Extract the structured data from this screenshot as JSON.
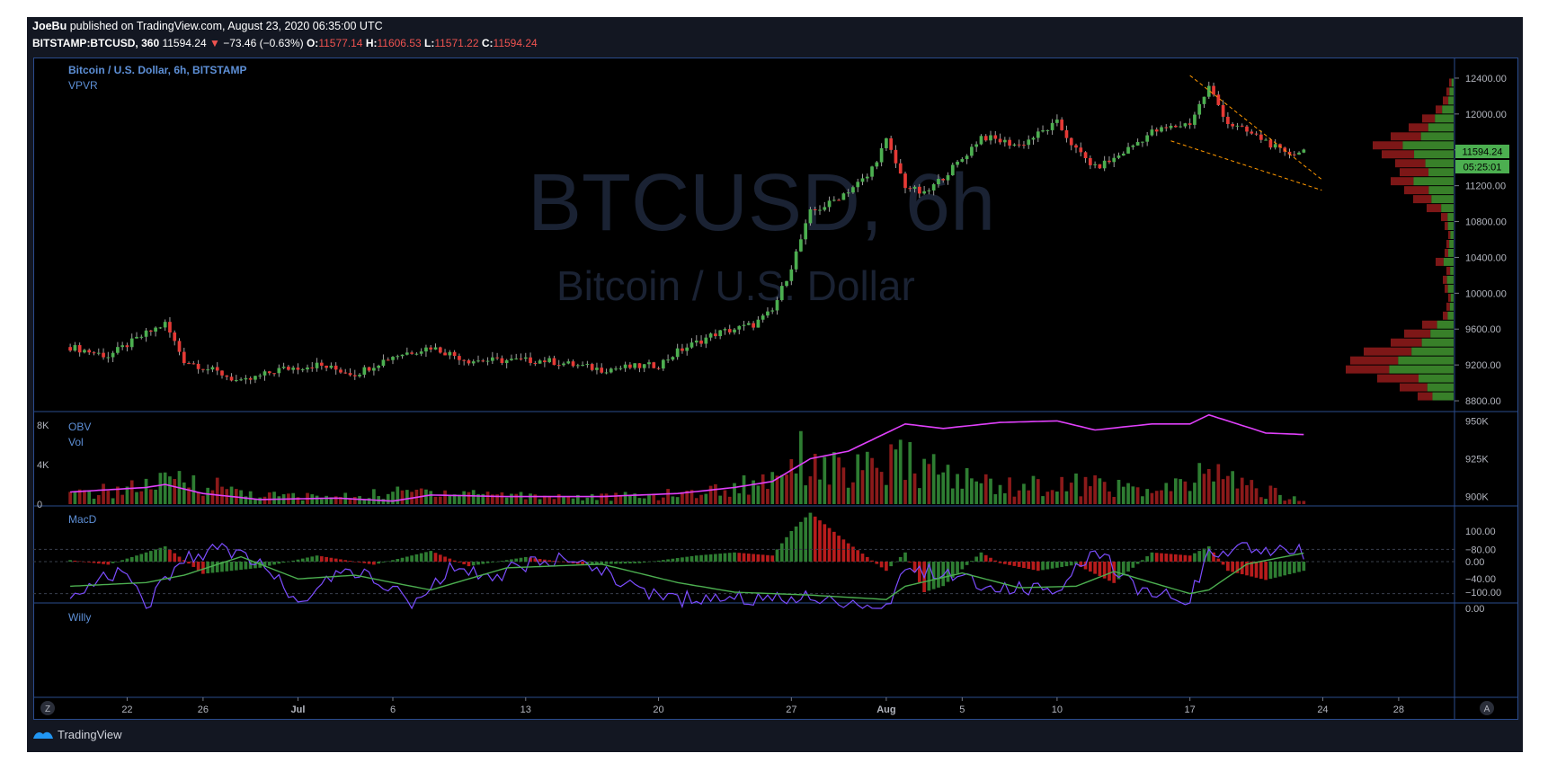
{
  "header": {
    "author": "JoeBu",
    "published_text": "published on TradingView.com, August 23, 2020 06:35:00 UTC",
    "symbol": "BITSTAMP:BTCUSD, 360",
    "price": "11594.24",
    "change": "−73.46 (−0.63%)",
    "o_label": "O:",
    "o_val": "11577.14",
    "h_label": "H:",
    "h_val": "11606.53",
    "l_label": "L:",
    "l_val": "11571.22",
    "c_label": "C:",
    "c_val": "11594.24"
  },
  "panes": {
    "main_title": "Bitcoin / U.S. Dollar, 6h, BITSTAMP",
    "vpvr_label": "VPVR",
    "watermark_symbol": "BTCUSD, 6h",
    "watermark_name": "Bitcoin / U.S. Dollar",
    "obv_label": "OBV",
    "vol_label": "Vol",
    "macd_label": "MacD",
    "willy_label": "Willy",
    "last_price_tag": "11594.24",
    "countdown_tag": "05:25:01",
    "footer_brand": "TradingView",
    "z_button": "Z",
    "a_button": "A"
  },
  "colors": {
    "background": "#131722",
    "up": "#26a69a",
    "down": "#ef5350",
    "candle_up": "#4caf50",
    "candle_down": "#e53935",
    "obv_line": "#e040fb",
    "willy_line": "#7c4dff",
    "willy_signal": "#e53935",
    "axis_text": "#b2b5be",
    "label_blue": "#5d8fd6"
  },
  "chart_data": [
    {
      "type": "candlestick",
      "title": "Bitcoin / U.S. Dollar, 6h, BITSTAMP",
      "y_ticks": [
        8800,
        9200,
        9600,
        10000,
        10400,
        10800,
        11200,
        11600,
        12000,
        12400
      ],
      "y_tick_labels": [
        "8800.00",
        "9200.00",
        "9600.00",
        "10000.00",
        "10400.00",
        "10800.00",
        "11200.00",
        "11600.00",
        "12000.00",
        "12400.00"
      ],
      "ylim": [
        8700,
        12550
      ],
      "x_tick_labels": [
        "22",
        "26",
        "Jul",
        "6",
        "13",
        "20",
        "27",
        "Aug",
        "5",
        "10",
        "17",
        "24",
        "28"
      ],
      "x_tick_dates": [
        "2020-06-22",
        "2020-06-26",
        "2020-07-01",
        "2020-07-06",
        "2020-07-13",
        "2020-07-20",
        "2020-07-27",
        "2020-08-01",
        "2020-08-05",
        "2020-08-10",
        "2020-08-17",
        "2020-08-24",
        "2020-08-28"
      ],
      "x_range": [
        "2020-06-18",
        "2020-08-29"
      ],
      "close_path": [
        [
          "2020-06-19",
          9400
        ],
        [
          "2020-06-21",
          9300
        ],
        [
          "2020-06-23",
          9550
        ],
        [
          "2020-06-24",
          9660
        ],
        [
          "2020-06-25",
          9250
        ],
        [
          "2020-06-27",
          9100
        ],
        [
          "2020-06-28",
          9000
        ],
        [
          "2020-06-30",
          9150
        ],
        [
          "2020-07-02",
          9200
        ],
        [
          "2020-07-04",
          9100
        ],
        [
          "2020-07-06",
          9300
        ],
        [
          "2020-07-08",
          9400
        ],
        [
          "2020-07-10",
          9250
        ],
        [
          "2020-07-12",
          9250
        ],
        [
          "2020-07-14",
          9250
        ],
        [
          "2020-07-17",
          9150
        ],
        [
          "2020-07-20",
          9200
        ],
        [
          "2020-07-21",
          9350
        ],
        [
          "2020-07-23",
          9550
        ],
        [
          "2020-07-25",
          9650
        ],
        [
          "2020-07-26",
          9800
        ],
        [
          "2020-07-27",
          10300
        ],
        [
          "2020-07-28",
          10900
        ],
        [
          "2020-07-29",
          11000
        ],
        [
          "2020-07-31",
          11300
        ],
        [
          "2020-08-01",
          11700
        ],
        [
          "2020-08-02",
          11200
        ],
        [
          "2020-08-03",
          11100
        ],
        [
          "2020-08-05",
          11500
        ],
        [
          "2020-08-06",
          11750
        ],
        [
          "2020-08-08",
          11650
        ],
        [
          "2020-08-10",
          11900
        ],
        [
          "2020-08-11",
          11600
        ],
        [
          "2020-08-12",
          11400
        ],
        [
          "2020-08-13",
          11500
        ],
        [
          "2020-08-15",
          11800
        ],
        [
          "2020-08-17",
          11900
        ],
        [
          "2020-08-18",
          12300
        ],
        [
          "2020-08-19",
          11900
        ],
        [
          "2020-08-21",
          11700
        ],
        [
          "2020-08-22",
          11550
        ],
        [
          "2020-08-23",
          11594
        ]
      ],
      "last_price": 11594.24,
      "wedge_upper": [
        [
          "2020-08-17",
          12430
        ],
        [
          "2020-08-23",
          11450
        ]
      ],
      "wedge_lower": [
        [
          "2020-08-16",
          11700
        ],
        [
          "2020-08-23",
          11250
        ]
      ],
      "vpvr_profile": [
        [
          8850,
          40
        ],
        [
          8950,
          60
        ],
        [
          9050,
          85
        ],
        [
          9150,
          120
        ],
        [
          9250,
          115
        ],
        [
          9350,
          100
        ],
        [
          9450,
          70
        ],
        [
          9550,
          55
        ],
        [
          9650,
          35
        ],
        [
          9750,
          12
        ],
        [
          9850,
          8
        ],
        [
          9950,
          6
        ],
        [
          10050,
          10
        ],
        [
          10150,
          12
        ],
        [
          10250,
          8
        ],
        [
          10350,
          20
        ],
        [
          10450,
          10
        ],
        [
          10550,
          8
        ],
        [
          10650,
          6
        ],
        [
          10750,
          10
        ],
        [
          10850,
          14
        ],
        [
          10950,
          30
        ],
        [
          11050,
          45
        ],
        [
          11150,
          55
        ],
        [
          11250,
          70
        ],
        [
          11350,
          60
        ],
        [
          11450,
          65
        ],
        [
          11550,
          80
        ],
        [
          11650,
          90
        ],
        [
          11750,
          70
        ],
        [
          11850,
          50
        ],
        [
          11950,
          35
        ],
        [
          12050,
          20
        ],
        [
          12150,
          12
        ],
        [
          12250,
          8
        ],
        [
          12350,
          5
        ]
      ]
    },
    {
      "type": "bar",
      "name": "Vol / OBV",
      "left_ticks": [
        "8K",
        "4K",
        "0"
      ],
      "left_tick_values": [
        8000,
        4000,
        0
      ],
      "right_ticks": [
        "950K",
        "925K",
        "900K"
      ],
      "right_tick_values": [
        950000,
        925000,
        900000
      ],
      "vol_path": [
        [
          "2020-06-19",
          900
        ],
        [
          "2020-06-23",
          1800
        ],
        [
          "2020-06-25",
          2500
        ],
        [
          "2020-06-29",
          900
        ],
        [
          "2020-07-03",
          700
        ],
        [
          "2020-07-08",
          1400
        ],
        [
          "2020-07-13",
          900
        ],
        [
          "2020-07-17",
          700
        ],
        [
          "2020-07-21",
          1000
        ],
        [
          "2020-07-24",
          1600
        ],
        [
          "2020-07-26",
          2800
        ],
        [
          "2020-07-27",
          5200
        ],
        [
          "2020-07-28",
          4500
        ],
        [
          "2020-07-30",
          3000
        ],
        [
          "2020-08-02",
          4200
        ],
        [
          "2020-08-05",
          2500
        ],
        [
          "2020-08-08",
          1800
        ],
        [
          "2020-08-12",
          2000
        ],
        [
          "2020-08-15",
          1200
        ],
        [
          "2020-08-17",
          2000
        ],
        [
          "2020-08-18",
          3500
        ],
        [
          "2020-08-20",
          1800
        ],
        [
          "2020-08-23",
          300
        ]
      ],
      "obv_path": [
        [
          "2020-06-19",
          903000
        ],
        [
          "2020-06-23",
          906000
        ],
        [
          "2020-06-24",
          908000
        ],
        [
          "2020-06-26",
          902000
        ],
        [
          "2020-06-29",
          898000
        ],
        [
          "2020-07-03",
          899000
        ],
        [
          "2020-07-06",
          897000
        ],
        [
          "2020-07-08",
          901000
        ],
        [
          "2020-07-12",
          900000
        ],
        [
          "2020-07-17",
          900000
        ],
        [
          "2020-07-21",
          902000
        ],
        [
          "2020-07-24",
          906000
        ],
        [
          "2020-07-26",
          910000
        ],
        [
          "2020-07-28",
          925000
        ],
        [
          "2020-07-30",
          930000
        ],
        [
          "2020-08-02",
          948000
        ],
        [
          "2020-08-04",
          945000
        ],
        [
          "2020-08-07",
          949000
        ],
        [
          "2020-08-10",
          950000
        ],
        [
          "2020-08-12",
          944000
        ],
        [
          "2020-08-15",
          948000
        ],
        [
          "2020-08-17",
          948000
        ],
        [
          "2020-08-18",
          954000
        ],
        [
          "2020-08-21",
          942000
        ],
        [
          "2020-08-23",
          941000
        ]
      ]
    },
    {
      "type": "bar",
      "name": "MacD",
      "y_ticks": [
        100,
        0,
        -100
      ],
      "y_tick_labels": [
        "100.00",
        "0.00",
        "−100.00"
      ],
      "hist_path": [
        [
          "2020-06-19",
          5
        ],
        [
          "2020-06-21",
          -10
        ],
        [
          "2020-06-23",
          30
        ],
        [
          "2020-06-24",
          50
        ],
        [
          "2020-06-26",
          -40
        ],
        [
          "2020-06-29",
          -20
        ],
        [
          "2020-07-02",
          20
        ],
        [
          "2020-07-05",
          -10
        ],
        [
          "2020-07-08",
          35
        ],
        [
          "2020-07-10",
          -15
        ],
        [
          "2020-07-13",
          15
        ],
        [
          "2020-07-16",
          -10
        ],
        [
          "2020-07-19",
          -5
        ],
        [
          "2020-07-22",
          20
        ],
        [
          "2020-07-24",
          30
        ],
        [
          "2020-07-26",
          20
        ],
        [
          "2020-07-27",
          100
        ],
        [
          "2020-07-28",
          160
        ],
        [
          "2020-07-30",
          60
        ],
        [
          "2020-08-01",
          -30
        ],
        [
          "2020-08-02",
          30
        ],
        [
          "2020-08-03",
          -100
        ],
        [
          "2020-08-04",
          -80
        ],
        [
          "2020-08-06",
          30
        ],
        [
          "2020-08-07",
          -5
        ],
        [
          "2020-08-09",
          -30
        ],
        [
          "2020-08-11",
          -10
        ],
        [
          "2020-08-13",
          -70
        ],
        [
          "2020-08-15",
          30
        ],
        [
          "2020-08-17",
          20
        ],
        [
          "2020-08-18",
          50
        ],
        [
          "2020-08-19",
          -30
        ],
        [
          "2020-08-21",
          -60
        ],
        [
          "2020-08-23",
          -30
        ]
      ]
    },
    {
      "type": "line",
      "name": "Willy",
      "y_ticks": [
        0,
        -40,
        -80
      ],
      "y_tick_labels": [
        "0.00",
        "−40.00",
        "−80.00"
      ],
      "willy_path": [
        [
          "2020-06-19",
          -20
        ],
        [
          "2020-06-20",
          -35
        ],
        [
          "2020-06-22",
          -50
        ],
        [
          "2020-06-23",
          -5
        ],
        [
          "2020-06-25",
          -65
        ],
        [
          "2020-06-27",
          -80
        ],
        [
          "2020-06-29",
          -60
        ],
        [
          "2020-07-01",
          -10
        ],
        [
          "2020-07-03",
          -50
        ],
        [
          "2020-07-05",
          -45
        ],
        [
          "2020-07-07",
          -10
        ],
        [
          "2020-07-09",
          -55
        ],
        [
          "2020-07-11",
          -40
        ],
        [
          "2020-07-14",
          -70
        ],
        [
          "2020-07-17",
          -50
        ],
        [
          "2020-07-19",
          -20
        ],
        [
          "2020-07-21",
          -10
        ],
        [
          "2020-07-23",
          -20
        ],
        [
          "2020-07-25",
          -15
        ],
        [
          "2020-07-28",
          -15
        ],
        [
          "2020-07-31",
          -5
        ],
        [
          "2020-08-01",
          0
        ],
        [
          "2020-08-02",
          -60
        ],
        [
          "2020-08-04",
          -45
        ],
        [
          "2020-08-07",
          -30
        ],
        [
          "2020-08-10",
          -20
        ],
        [
          "2020-08-12",
          -80
        ],
        [
          "2020-08-14",
          -30
        ],
        [
          "2020-08-16",
          -15
        ],
        [
          "2020-08-17",
          -15
        ],
        [
          "2020-08-18",
          -70
        ],
        [
          "2020-08-20",
          -85
        ],
        [
          "2020-08-22",
          -80
        ],
        [
          "2020-08-23",
          -75
        ]
      ],
      "signal_path": [
        [
          "2020-06-19",
          -30
        ],
        [
          "2020-06-23",
          -35
        ],
        [
          "2020-06-25",
          -45
        ],
        [
          "2020-06-28",
          -70
        ],
        [
          "2020-07-01",
          -40
        ],
        [
          "2020-07-04",
          -45
        ],
        [
          "2020-07-08",
          -25
        ],
        [
          "2020-07-12",
          -55
        ],
        [
          "2020-07-17",
          -60
        ],
        [
          "2020-07-21",
          -35
        ],
        [
          "2020-07-24",
          -22
        ],
        [
          "2020-07-28",
          -18
        ],
        [
          "2020-08-01",
          -12
        ],
        [
          "2020-08-02",
          -30
        ],
        [
          "2020-08-05",
          -48
        ],
        [
          "2020-08-08",
          -28
        ],
        [
          "2020-08-11",
          -30
        ],
        [
          "2020-08-13",
          -50
        ],
        [
          "2020-08-17",
          -20
        ],
        [
          "2020-08-18",
          -25
        ],
        [
          "2020-08-20",
          -60
        ],
        [
          "2020-08-23",
          -75
        ]
      ]
    }
  ]
}
